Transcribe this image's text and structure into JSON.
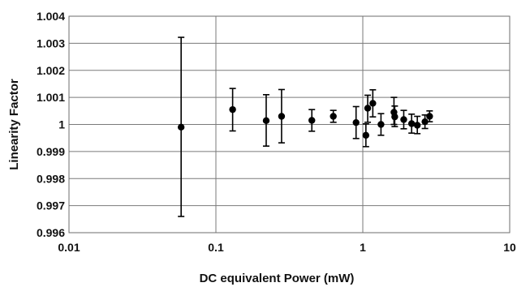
{
  "chart_data": {
    "type": "scatter",
    "xlabel": "DC equivalent Power (mW)",
    "ylabel": "Linearity Factor",
    "xscale": "log",
    "xlim": [
      0.01,
      10
    ],
    "ylim": [
      0.996,
      1.004
    ],
    "grid": true,
    "legend": "none",
    "x_ticks": [
      "0.01",
      "0.1",
      "1",
      "10"
    ],
    "y_ticks": [
      "0.996",
      "0.997",
      "0.998",
      "0.999",
      "1",
      "1.001",
      "1.002",
      "1.003",
      "1.004"
    ],
    "points": [
      {
        "x": 0.058,
        "y": 0.9999,
        "lo": 0.9966,
        "hi": 1.00322
      },
      {
        "x": 0.13,
        "y": 1.00055,
        "lo": 0.99976,
        "hi": 1.00133
      },
      {
        "x": 0.22,
        "y": 1.00014,
        "lo": 0.9992,
        "hi": 1.0011
      },
      {
        "x": 0.28,
        "y": 1.0003,
        "lo": 0.99932,
        "hi": 1.00129
      },
      {
        "x": 0.45,
        "y": 1.00015,
        "lo": 0.99975,
        "hi": 1.00055
      },
      {
        "x": 0.63,
        "y": 1.0003,
        "lo": 1.00008,
        "hi": 1.00052
      },
      {
        "x": 0.9,
        "y": 1.00007,
        "lo": 0.99948,
        "hi": 1.00066
      },
      {
        "x": 1.05,
        "y": 0.9996,
        "lo": 0.99918,
        "hi": 1.00002
      },
      {
        "x": 1.08,
        "y": 1.0006,
        "lo": 1.00008,
        "hi": 1.00108
      },
      {
        "x": 1.17,
        "y": 1.00078,
        "lo": 1.00028,
        "hi": 1.00128
      },
      {
        "x": 1.33,
        "y": 1.0,
        "lo": 0.9996,
        "hi": 1.0004
      },
      {
        "x": 1.63,
        "y": 1.00045,
        "lo": 1.0,
        "hi": 1.001
      },
      {
        "x": 1.65,
        "y": 1.00028,
        "lo": 0.99992,
        "hi": 1.00068
      },
      {
        "x": 1.9,
        "y": 1.00018,
        "lo": 0.99984,
        "hi": 1.00052
      },
      {
        "x": 2.15,
        "y": 1.00003,
        "lo": 0.99968,
        "hi": 1.00038
      },
      {
        "x": 2.35,
        "y": 0.99997,
        "lo": 0.99966,
        "hi": 1.0003
      },
      {
        "x": 2.65,
        "y": 1.0001,
        "lo": 0.99985,
        "hi": 1.00035
      },
      {
        "x": 2.85,
        "y": 1.0003,
        "lo": 1.0001,
        "hi": 1.0005
      }
    ]
  }
}
